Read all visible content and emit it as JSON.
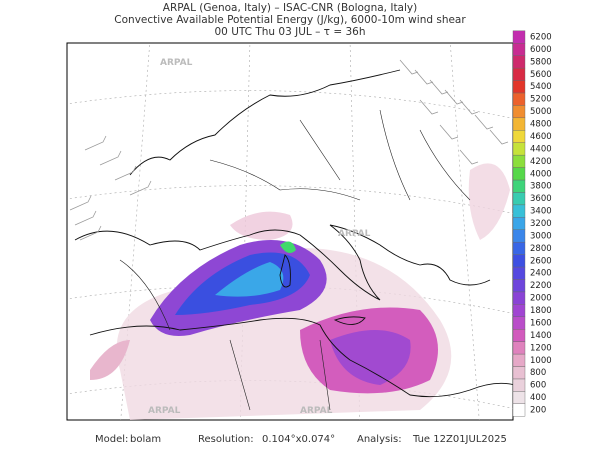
{
  "header": {
    "line1": "ARPAL (Genoa, Italy)  –  ISAC-CNR (Bologna, Italy)",
    "line2": "Convective Available Potential Energy (J/kg), 6000-10m wind shear",
    "line3": "00 UTC Thu 03 JUL  –  τ = 36h"
  },
  "watermarks": [
    "ARPAL",
    "ARPAL",
    "ARPAL",
    "ARPAL"
  ],
  "colorbar": {
    "levels": [
      200,
      400,
      600,
      800,
      1000,
      1200,
      1400,
      1600,
      1800,
      2000,
      2200,
      2400,
      2600,
      2800,
      3000,
      3200,
      3400,
      3600,
      3800,
      4000,
      4200,
      4400,
      4600,
      4800,
      5000,
      5200,
      5400,
      5600,
      5800,
      6000,
      6200
    ],
    "colors": [
      "#ffffff",
      "#eee3e8",
      "#ead1dc",
      "#e8c0d2",
      "#e6a8c7",
      "#df82bd",
      "#d25bbd",
      "#b94ec9",
      "#a045d2",
      "#8a43d6",
      "#6e45dc",
      "#5548e0",
      "#3d4fe2",
      "#3866e6",
      "#3a86ea",
      "#3aa5e8",
      "#38c0d8",
      "#38ccb0",
      "#3ed47a",
      "#56d84a",
      "#8cde3c",
      "#c6e23a",
      "#efd83a",
      "#f3b634",
      "#f08d30",
      "#ec612c",
      "#e2362a",
      "#d82a44",
      "#ce2a6c",
      "#c82c92",
      "#c22eae"
    ]
  },
  "footer": {
    "model_label": "Model:",
    "model": "bolam",
    "resolution_label": "Resolution:",
    "resolution": "0.104°x0.074°",
    "analysis_label": "Analysis:",
    "analysis": "Tue 12Z01JUL2025"
  }
}
